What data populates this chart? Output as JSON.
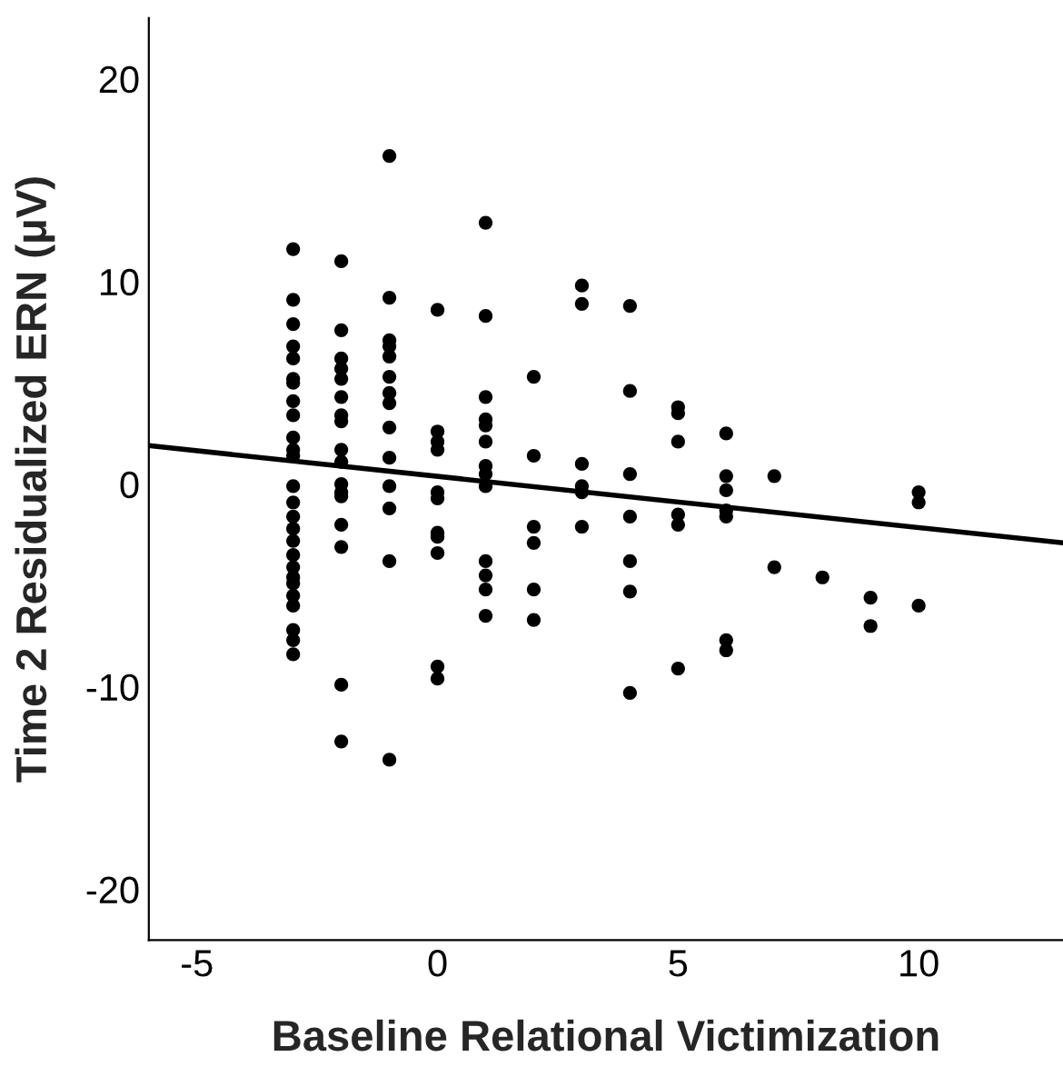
{
  "chart_data": {
    "type": "scatter",
    "xlabel": "Baseline Relational Victimization",
    "ylabel": "Time 2 Residualized ERN (μV)",
    "xlim": [
      -6,
      13
    ],
    "ylim": [
      -22.5,
      23
    ],
    "xticks": [
      -5,
      0,
      5,
      10
    ],
    "yticks": [
      -20,
      -10,
      0,
      10,
      20
    ],
    "grid": false,
    "legend": false,
    "series": [
      {
        "marker": "circle",
        "color": "#000000",
        "x": [
          -3,
          -3,
          -3,
          -3,
          -3,
          -3,
          -3,
          -3,
          -3,
          -3,
          -3,
          -3,
          -3,
          -3,
          -3,
          -3,
          -3,
          -3,
          -3,
          -3,
          -3,
          -3,
          -3,
          -3,
          -3,
          -3,
          -2,
          -2,
          -2,
          -2,
          -2,
          -2,
          -2,
          -2,
          -2,
          -2,
          -2,
          -2,
          -2,
          -2,
          -2,
          -2,
          -2,
          -1,
          -1,
          -1,
          -1,
          -1,
          -1,
          -1,
          -1,
          -1,
          -1,
          -1,
          -1,
          -1,
          -1,
          0,
          0,
          0,
          0,
          0,
          0,
          0,
          0,
          0,
          0,
          0,
          1,
          1,
          1,
          1,
          1,
          1,
          1,
          1,
          1,
          1,
          1,
          1,
          1,
          2,
          2,
          2,
          2,
          2,
          2,
          3,
          3,
          3,
          3,
          3,
          3,
          4,
          4,
          4,
          4,
          4,
          4,
          4,
          5,
          5,
          5,
          5,
          5,
          5,
          6,
          6,
          6,
          6,
          6,
          6,
          6,
          7,
          7,
          8,
          9,
          9,
          10,
          10,
          10
        ],
        "values": [
          11.6,
          9.1,
          7.9,
          6.8,
          6.2,
          5.2,
          5.0,
          4.1,
          3.4,
          2.3,
          1.7,
          1.4,
          -0.1,
          -0.9,
          -1.6,
          -2.2,
          -2.8,
          -3.5,
          -4.1,
          -4.6,
          -4.9,
          -5.5,
          -6.0,
          -7.2,
          -7.7,
          -8.4,
          11.0,
          7.6,
          6.2,
          5.7,
          5.2,
          4.3,
          3.4,
          3.1,
          1.7,
          1.1,
          0.0,
          -0.4,
          -0.6,
          -2.0,
          -3.1,
          -9.9,
          -12.7,
          16.2,
          9.2,
          7.1,
          6.8,
          6.3,
          5.3,
          4.5,
          4.0,
          2.8,
          1.3,
          -0.1,
          -1.2,
          -3.8,
          -13.6,
          8.6,
          2.6,
          2.1,
          1.7,
          -0.4,
          -0.7,
          -2.6,
          -2.4,
          -3.4,
          -9.0,
          -9.6,
          12.9,
          8.3,
          4.3,
          3.2,
          2.9,
          2.1,
          0.9,
          0.5,
          -0.1,
          -3.8,
          -4.5,
          -5.2,
          -6.5,
          5.3,
          1.4,
          -2.1,
          -2.9,
          -5.2,
          -6.7,
          9.8,
          8.9,
          1.0,
          -0.1,
          -0.4,
          -2.1,
          8.8,
          4.6,
          0.5,
          -1.6,
          -3.8,
          -5.3,
          -10.3,
          3.8,
          3.5,
          2.1,
          -1.5,
          -2.0,
          -9.1,
          2.5,
          0.4,
          -0.3,
          -1.3,
          -1.6,
          -7.7,
          -8.2,
          0.4,
          -4.1,
          -4.6,
          -5.6,
          -7.0,
          -0.4,
          -0.9,
          -6.0
        ]
      },
      {
        "type": "line",
        "marker": "none",
        "color": "#000000",
        "x": [
          -6,
          13
        ],
        "values": [
          1.9,
          -2.9
        ]
      }
    ]
  }
}
